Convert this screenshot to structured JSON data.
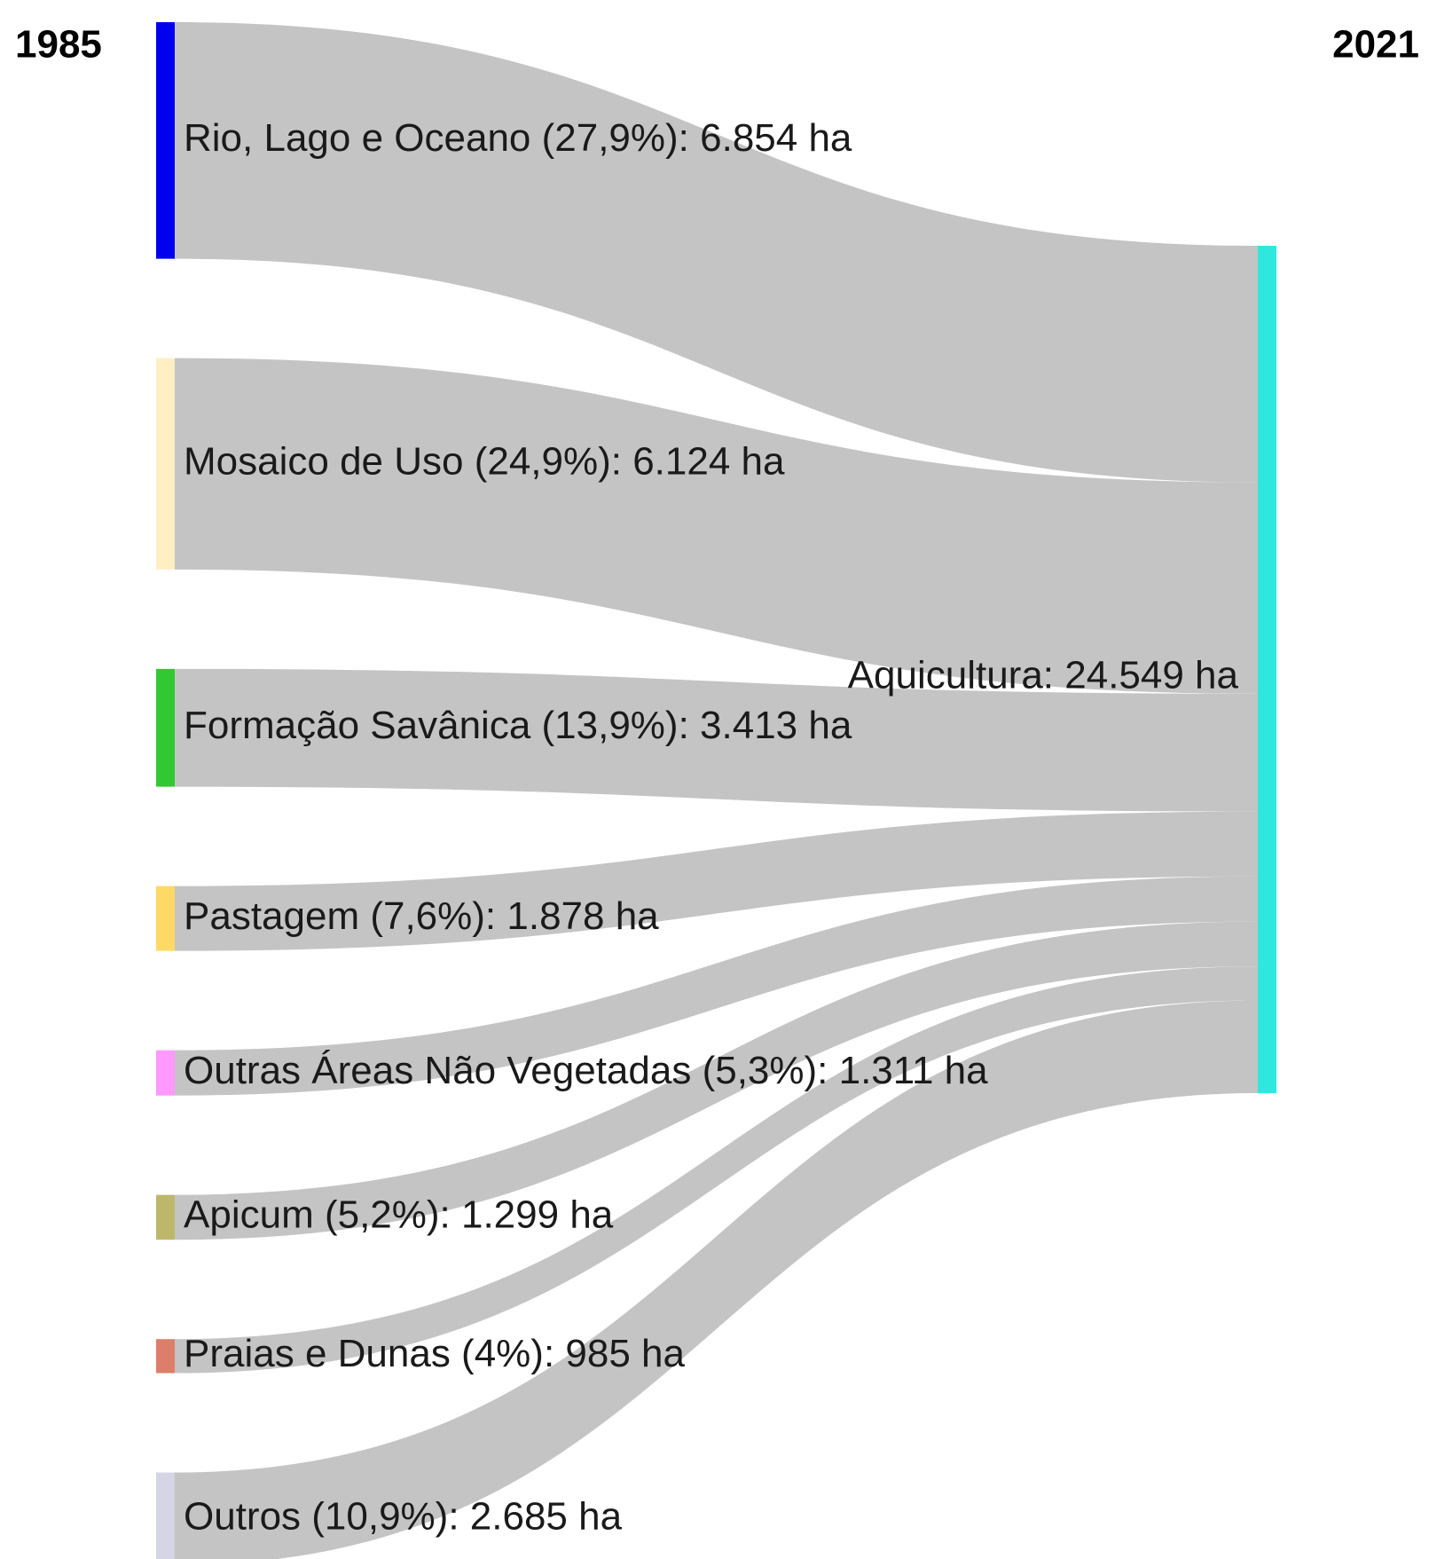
{
  "chart_data": {
    "type": "sankey",
    "left_label": "1985",
    "right_label": "2021",
    "link_color": "#c4c4c4",
    "sources": [
      {
        "label": "Rio, Lago e Oceano (27,9%): 6.854 ha",
        "value": 6854,
        "color": "#0000ee"
      },
      {
        "label": "Mosaico de Uso (24,9%): 6.124 ha",
        "value": 6124,
        "color": "#ffefc3"
      },
      {
        "label": "Formação Savânica (13,9%): 3.413 ha",
        "value": 3413,
        "color": "#32c832"
      },
      {
        "label": "Pastagem (7,6%): 1.878 ha",
        "value": 1878,
        "color": "#ffd966"
      },
      {
        "label": "Outras Áreas Não Vegetadas (5,3%): 1.311 ha",
        "value": 1311,
        "color": "#ff99ff"
      },
      {
        "label": "Apicum (5,2%): 1.299 ha",
        "value": 1299,
        "color": "#bdb76b"
      },
      {
        "label": "Praias e Dunas (4%): 985 ha",
        "value": 985,
        "color": "#dd7e6b"
      },
      {
        "label": "Outros (10,9%): 2.685 ha",
        "value": 2685,
        "color": "#d5d5e5"
      }
    ],
    "target": {
      "label": "Aquicultura: 24.549 ha",
      "value": 24549,
      "color": "#2ee8e0"
    }
  }
}
